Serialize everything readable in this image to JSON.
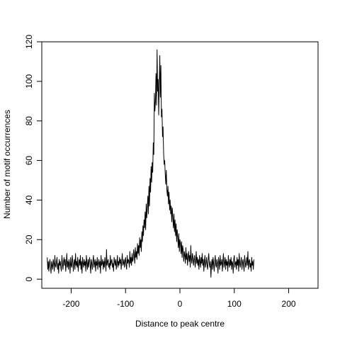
{
  "chart_data": {
    "type": "line",
    "title": "",
    "xlabel": "Distance to peak centre",
    "ylabel": "Number of motif occurrences",
    "xlim": [
      -254,
      254
    ],
    "ylim": [
      -4.6,
      120
    ],
    "xticks": [
      -200,
      -100,
      0,
      100,
      200
    ],
    "yticks": [
      0,
      20,
      40,
      60,
      80,
      100,
      120
    ],
    "xtick_labels": [
      "-200",
      "-100",
      "0",
      "100",
      "200"
    ],
    "ytick_labels": [
      "0",
      "20",
      "40",
      "60",
      "80",
      "100",
      "120"
    ],
    "grid": false,
    "legend": "none",
    "line_color": "#000000",
    "series": [
      {
        "x_start": -244,
        "x_step": 1,
        "values": [
          11,
          5,
          9,
          4,
          8,
          10,
          6,
          3,
          9,
          7,
          5,
          10,
          8,
          4,
          12,
          7,
          6,
          9,
          11,
          5,
          8,
          3,
          10,
          7,
          9,
          6,
          4,
          12,
          8,
          5,
          9,
          11,
          7,
          10,
          4,
          8,
          13,
          6,
          9,
          5,
          10,
          8,
          3,
          11,
          7,
          6,
          12,
          9,
          4,
          8,
          10,
          5,
          13,
          7,
          9,
          6,
          11,
          4,
          8,
          10,
          7,
          12,
          5,
          9,
          3,
          11,
          8,
          6,
          10,
          7,
          9,
          4,
          12,
          8,
          5,
          10,
          6,
          9,
          11,
          7,
          3,
          10,
          8,
          5,
          9,
          12,
          6,
          8,
          10,
          4,
          9,
          7,
          11,
          5,
          8,
          10,
          6,
          9,
          3,
          12,
          7,
          8,
          10,
          5,
          9,
          6,
          11,
          8,
          4,
          15,
          7,
          9,
          10,
          6,
          8,
          5,
          12,
          7,
          9,
          10,
          6,
          8,
          4,
          11,
          9,
          7,
          10,
          5,
          8,
          12,
          6,
          9,
          7,
          11,
          8,
          10,
          5,
          9,
          13,
          7,
          8,
          10,
          6,
          9,
          11,
          7,
          5,
          12,
          8,
          10,
          9,
          6,
          14,
          8,
          11,
          7,
          13,
          9,
          10,
          15,
          12,
          8,
          16,
          11,
          14,
          10,
          18,
          13,
          17,
          12,
          21,
          16,
          20,
          14,
          24,
          19,
          27,
          22,
          30,
          26,
          34,
          25,
          38,
          31,
          36,
          42,
          33,
          47,
          37,
          51,
          44,
          57,
          49,
          59,
          54,
          69,
          63,
          94,
          85,
          90,
          104,
          88,
          116,
          95,
          101,
          83,
          98,
          113,
          92,
          108,
          82,
          86,
          72,
          77,
          64,
          58,
          60,
          53,
          48,
          55,
          45,
          42,
          47,
          38,
          44,
          35,
          40,
          33,
          37,
          29,
          36,
          31,
          26,
          33,
          24,
          30,
          22,
          28,
          19,
          25,
          21,
          16,
          23,
          14,
          20,
          18,
          13,
          19,
          11,
          17,
          15,
          9,
          14,
          12,
          8,
          16,
          10,
          13,
          7,
          11,
          14,
          9,
          12,
          6,
          17,
          10,
          8,
          13,
          11,
          7,
          10,
          12,
          6,
          9,
          14,
          8,
          11,
          7,
          10,
          5,
          12,
          9,
          6,
          11,
          8,
          13,
          7,
          10,
          4,
          9,
          12,
          6,
          8,
          11,
          7,
          5,
          10,
          13,
          8,
          6,
          9,
          1,
          7,
          10,
          5,
          11,
          8,
          4,
          9,
          12,
          7,
          6,
          10,
          8,
          3,
          11,
          9,
          5,
          12,
          7,
          8,
          10,
          4,
          9,
          13,
          6,
          8,
          11,
          5,
          10,
          7,
          9,
          4,
          12,
          8,
          6,
          10,
          7,
          11,
          5,
          9,
          8,
          3,
          10,
          12,
          6,
          8,
          9,
          5,
          11,
          7,
          10,
          4,
          13,
          8,
          6,
          9,
          11,
          5,
          8,
          10,
          7,
          4,
          12,
          9,
          6,
          8,
          11,
          7,
          14,
          5,
          9,
          10,
          6,
          8,
          4,
          11,
          7,
          9,
          5,
          10
        ]
      }
    ]
  }
}
